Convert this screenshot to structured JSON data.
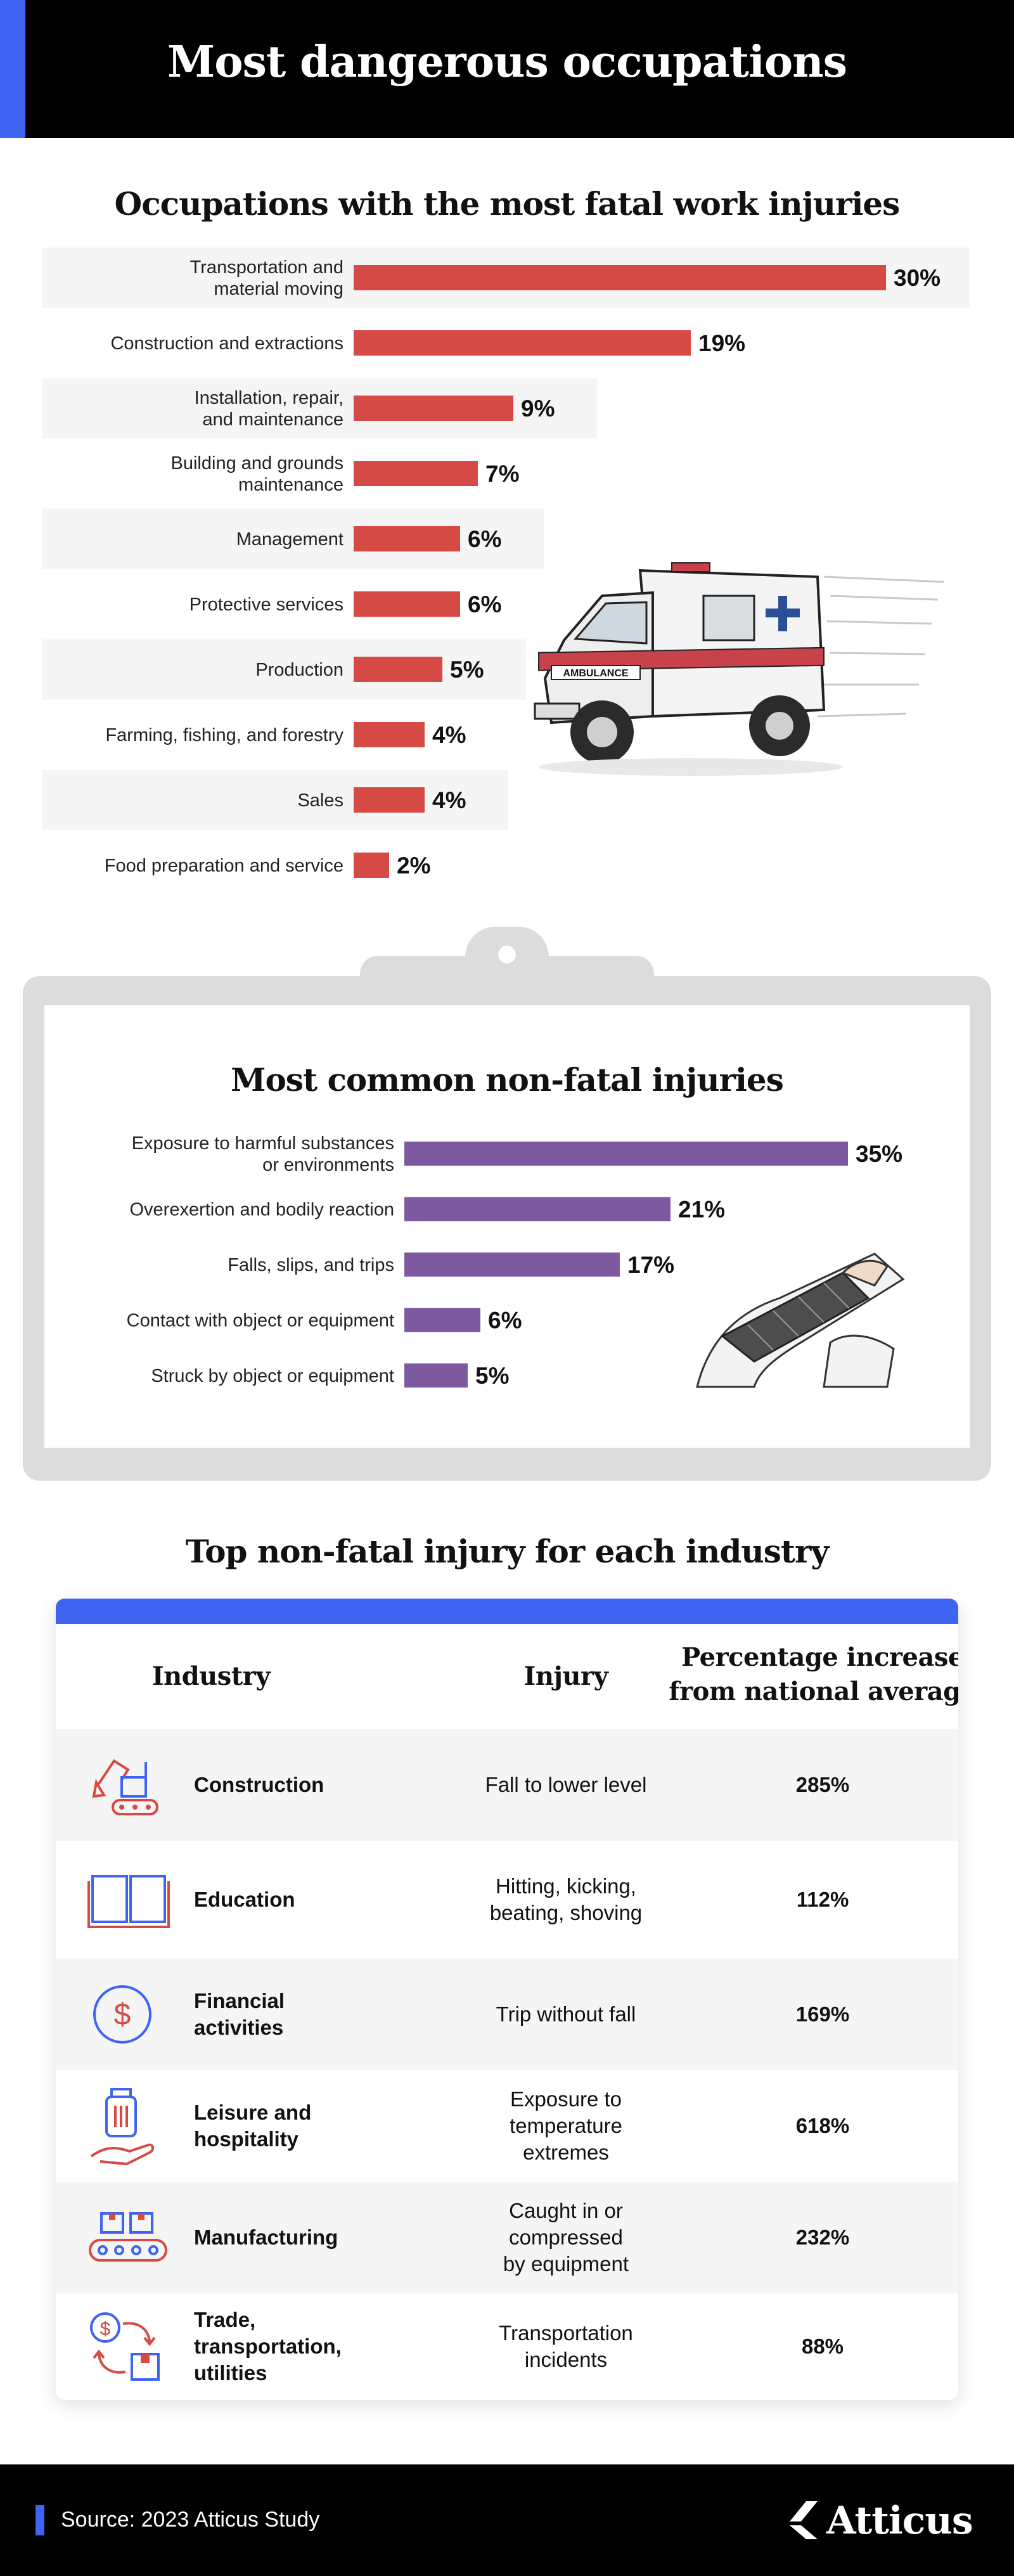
{
  "header": {
    "title": "Most dangerous occupations"
  },
  "colors": {
    "accent": "#3f64f1",
    "fatal_bar": "#d64a45",
    "nonfatal_bar": "#7d5a9f",
    "row_shade": "#f5f5f5"
  },
  "chart_data": [
    {
      "type": "bar",
      "orientation": "horizontal",
      "title": "Occupations with the most fatal work injuries",
      "categories": [
        [
          "Transportation and",
          "material moving"
        ],
        [
          "Construction and extractions"
        ],
        [
          "Installation, repair,",
          "and maintenance"
        ],
        [
          "Building and grounds",
          "maintenance"
        ],
        [
          "Management"
        ],
        [
          "Protective services"
        ],
        [
          "Production"
        ],
        [
          "Farming, fishing, and forestry"
        ],
        [
          "Sales"
        ],
        [
          "Food preparation and service"
        ]
      ],
      "values": [
        30,
        19,
        9,
        7,
        6,
        6,
        5,
        4,
        4,
        2
      ],
      "value_labels": [
        "30%",
        "19%",
        "9%",
        "7%",
        "6%",
        "6%",
        "5%",
        "4%",
        "4%",
        "2%"
      ],
      "unit": "%",
      "xlim": [
        0,
        30
      ]
    },
    {
      "type": "bar",
      "orientation": "horizontal",
      "title": "Most common non-fatal injuries",
      "categories": [
        [
          "Exposure to harmful substances",
          "or environments"
        ],
        [
          "Overexertion and bodily reaction"
        ],
        [
          "Falls, slips, and trips"
        ],
        [
          "Contact with object or equipment"
        ],
        [
          "Struck by object or equipment"
        ]
      ],
      "values": [
        35,
        21,
        17,
        6,
        5
      ],
      "value_labels": [
        "35%",
        "21%",
        "17%",
        "6%",
        "5%"
      ],
      "unit": "%",
      "xlim": [
        0,
        35
      ]
    }
  ],
  "ambulance": {
    "text": "AMBULANCE"
  },
  "industry_table": {
    "title": "Top non-fatal injury for each industry",
    "headers": {
      "industry": "Industry",
      "injury": "Injury",
      "increase_l1": "Percentage increase",
      "increase_l2": "from national average"
    },
    "rows": [
      {
        "icon": "excavator-icon",
        "industry": "Construction",
        "injury": "Fall to lower level",
        "increase": "285%"
      },
      {
        "icon": "open-book-icon",
        "industry": "Education",
        "injury": "Hitting, kicking, beating, shoving",
        "increase": "112%"
      },
      {
        "icon": "dollar-circle-icon",
        "industry": "Financial activities",
        "injury": "Trip without fall",
        "increase": "169%"
      },
      {
        "icon": "luggage-hand-icon",
        "industry": "Leisure and hospitality",
        "injury": "Exposure to temperature extremes",
        "increase": "618%"
      },
      {
        "icon": "conveyor-belt-icon",
        "industry": "Manufacturing",
        "injury": "Caught in or compressed by equipment",
        "increase": "232%"
      },
      {
        "icon": "trade-exchange-icon",
        "industry": "Trade, transportation, utilities",
        "injury": "Transportation incidents",
        "increase": "88%"
      }
    ]
  },
  "footer": {
    "source": "Source: 2023 Atticus Study",
    "brand": "Atticus"
  }
}
